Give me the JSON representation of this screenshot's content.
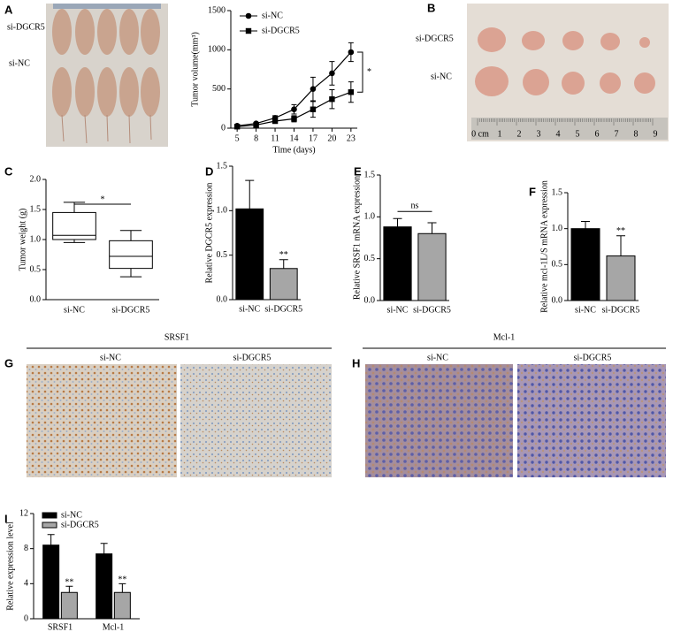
{
  "panels": {
    "labels": [
      "A",
      "B",
      "C",
      "D",
      "E",
      "F",
      "G",
      "H",
      "I"
    ]
  },
  "photos": {
    "a_rows": [
      "si-DGCR5",
      "si-NC"
    ],
    "b_rows": [
      "si-DGCR5",
      "si-NC"
    ],
    "ruler": [
      "0 cm",
      "1",
      "2",
      "3",
      "4",
      "5",
      "6",
      "7",
      "8",
      "9"
    ],
    "g_title": "SRSF1",
    "g_cols": [
      "si-NC",
      "si-DGCR5"
    ],
    "h_title": "Mcl-1",
    "h_cols": [
      "si-NC",
      "si-DGCR5"
    ]
  },
  "chart_data": [
    {
      "type": "line",
      "ylabel": "Tumor volume(mm³)",
      "xlabel": "Time (days)",
      "x": [
        5,
        8,
        11,
        14,
        17,
        20,
        23
      ],
      "xlim": [
        4,
        24
      ],
      "xticks": [
        5,
        8,
        11,
        14,
        17,
        20,
        23
      ],
      "ylim": [
        0,
        1500
      ],
      "yticks": [
        0,
        500,
        1000,
        1500
      ],
      "annotation": "*",
      "series": [
        {
          "name": "si-NC",
          "color": "#000000",
          "marker": "circle",
          "values": [
            30,
            60,
            130,
            240,
            500,
            700,
            970
          ],
          "errors": [
            10,
            15,
            30,
            60,
            150,
            150,
            120
          ]
        },
        {
          "name": "si-DGCR5",
          "color": "#000000",
          "marker": "square",
          "values": [
            20,
            40,
            90,
            120,
            240,
            370,
            460
          ],
          "errors": [
            10,
            15,
            25,
            40,
            100,
            120,
            130
          ]
        }
      ]
    },
    {
      "type": "box",
      "ylabel": "Tumor weight (g)",
      "categories": [
        "si-NC",
        "si-DGCR5"
      ],
      "ylim": [
        0,
        2
      ],
      "yticks": [
        {
          "value": 0,
          "label": "0.0"
        },
        {
          "value": 0.5,
          "label": "0.5"
        },
        {
          "value": 1,
          "label": "1.0"
        },
        {
          "value": 1.5,
          "label": "1.5"
        },
        {
          "value": 2,
          "label": "2.0"
        }
      ],
      "annotation": "*",
      "boxes": [
        {
          "min": 0.95,
          "q1": 1.0,
          "median": 1.07,
          "q3": 1.45,
          "max": 1.62
        },
        {
          "min": 0.38,
          "q1": 0.52,
          "median": 0.72,
          "q3": 0.98,
          "max": 1.15
        }
      ]
    },
    {
      "type": "bar",
      "ylabel": "Relative DGCR5 expression",
      "categories": [
        "si-NC",
        "si-DGCR5"
      ],
      "values": [
        1.02,
        0.35
      ],
      "errors": [
        0.32,
        0.1
      ],
      "colors": [
        "#000000",
        "#a6a6a6"
      ],
      "ylim": [
        0,
        1.5
      ],
      "yticks": [
        {
          "value": 0,
          "label": "0.0"
        },
        {
          "value": 0.5,
          "label": "0.5"
        },
        {
          "value": 1,
          "label": "1.0"
        },
        {
          "value": 1.5,
          "label": "1.5"
        }
      ],
      "annotation": "**"
    },
    {
      "type": "bar",
      "ylabel": "Relative SRSF1 mRNA expression",
      "categories": [
        "si-NC",
        "si-DGCR5"
      ],
      "values": [
        0.88,
        0.8
      ],
      "errors": [
        0.1,
        0.13
      ],
      "colors": [
        "#000000",
        "#a6a6a6"
      ],
      "ylim": [
        0,
        1.5
      ],
      "yticks": [
        {
          "value": 0,
          "label": "0.0"
        },
        {
          "value": 0.5,
          "label": "0.5"
        },
        {
          "value": 1,
          "label": "1.0"
        },
        {
          "value": 1.5,
          "label": "1.5"
        }
      ],
      "annotation": "ns"
    },
    {
      "type": "bar",
      "ylabel": "Relative mcl-1L/S mRNA expression",
      "categories": [
        "si-NC",
        "si-DGCR5"
      ],
      "values": [
        1.0,
        0.62
      ],
      "errors": [
        0.1,
        0.28
      ],
      "colors": [
        "#000000",
        "#a6a6a6"
      ],
      "ylim": [
        0,
        1.5
      ],
      "yticks": [
        {
          "value": 0,
          "label": "0.0"
        },
        {
          "value": 0.5,
          "label": "0.5"
        },
        {
          "value": 1,
          "label": "1.0"
        },
        {
          "value": 1.5,
          "label": "1.5"
        }
      ],
      "annotation": "**"
    },
    {
      "type": "grouped",
      "ylabel": "Relative expression level",
      "categories": [
        "SRSF1",
        "Mcl-1"
      ],
      "ylim": [
        0,
        12
      ],
      "yticks": [
        0,
        4,
        8,
        12
      ],
      "annotations": [
        "**",
        "**"
      ],
      "series": [
        {
          "name": "si-NC",
          "color": "#000000",
          "values": [
            8.4,
            7.4
          ],
          "errors": [
            1.2,
            1.2
          ]
        },
        {
          "name": "si-DGCR5",
          "color": "#a6a6a6",
          "values": [
            3.0,
            3.0
          ],
          "errors": [
            0.7,
            1.0
          ]
        }
      ]
    }
  ]
}
